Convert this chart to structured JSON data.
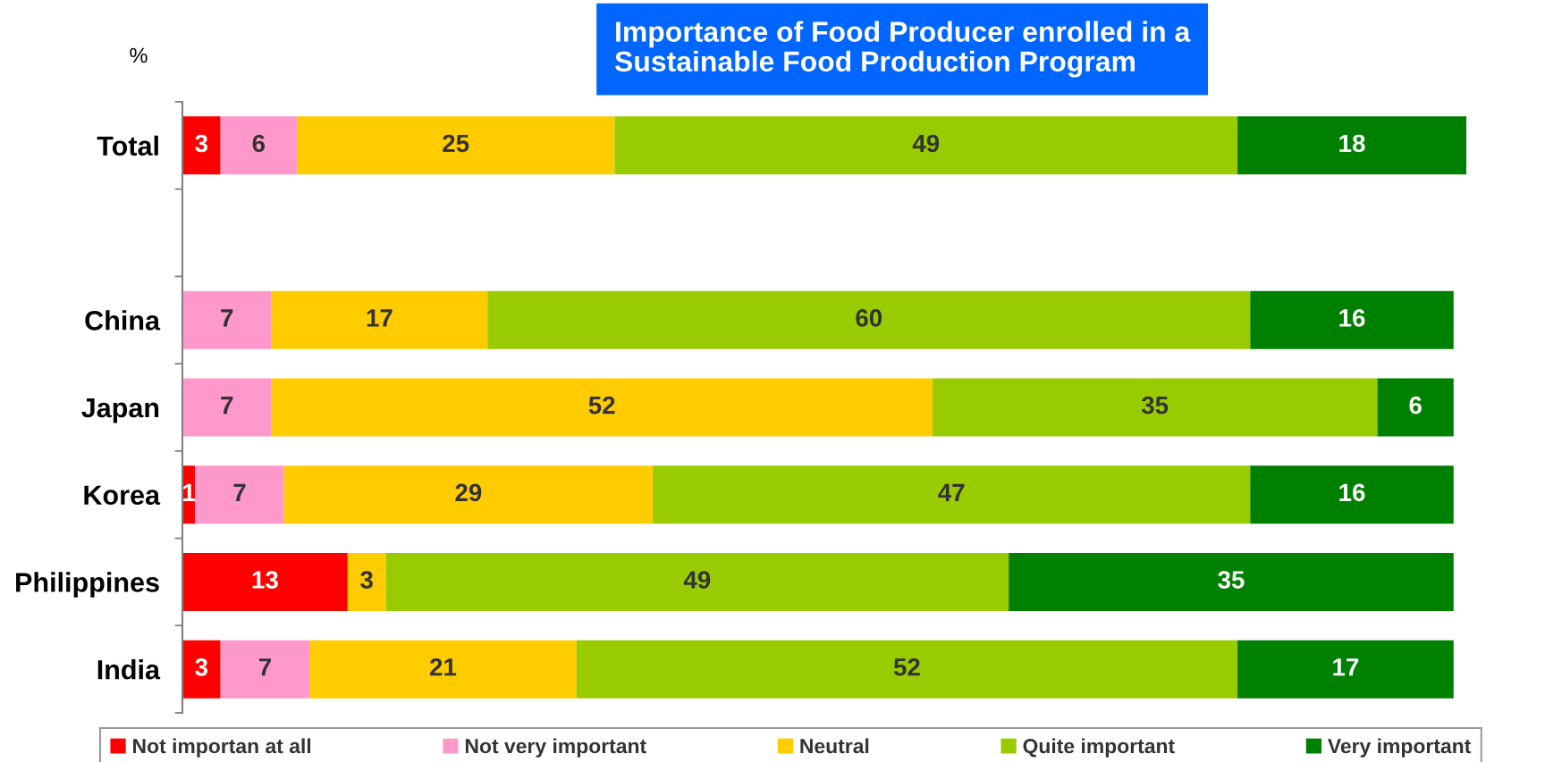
{
  "chart_data": {
    "type": "bar",
    "orientation": "horizontal",
    "stacked": true,
    "title": "Importance of Food Producer enrolled in a\nSustainable Food Production Program",
    "categories": [
      "Total",
      null,
      "China",
      "Japan",
      "Korea",
      "Philippines",
      "India"
    ],
    "series": [
      {
        "name": "Not importan at all",
        "color": "#ff0000",
        "values": [
          3,
          null,
          null,
          null,
          1,
          13,
          3
        ]
      },
      {
        "name": "Not very important",
        "color": "#ff99cc",
        "values": [
          6,
          null,
          7,
          7,
          7,
          null,
          7
        ]
      },
      {
        "name": "Neutral",
        "color": "#ffcc00",
        "values": [
          25,
          null,
          17,
          52,
          29,
          3,
          21
        ]
      },
      {
        "name": "Quite important",
        "color": "#99cc00",
        "values": [
          49,
          null,
          60,
          35,
          47,
          49,
          52
        ]
      },
      {
        "name": "Very important",
        "color": "#008000",
        "values": [
          18,
          null,
          16,
          6,
          16,
          35,
          17
        ]
      }
    ],
    "data_labels": true,
    "legend": "bottom",
    "tick_labels": "y",
    "annotations": [
      "%"
    ]
  }
}
